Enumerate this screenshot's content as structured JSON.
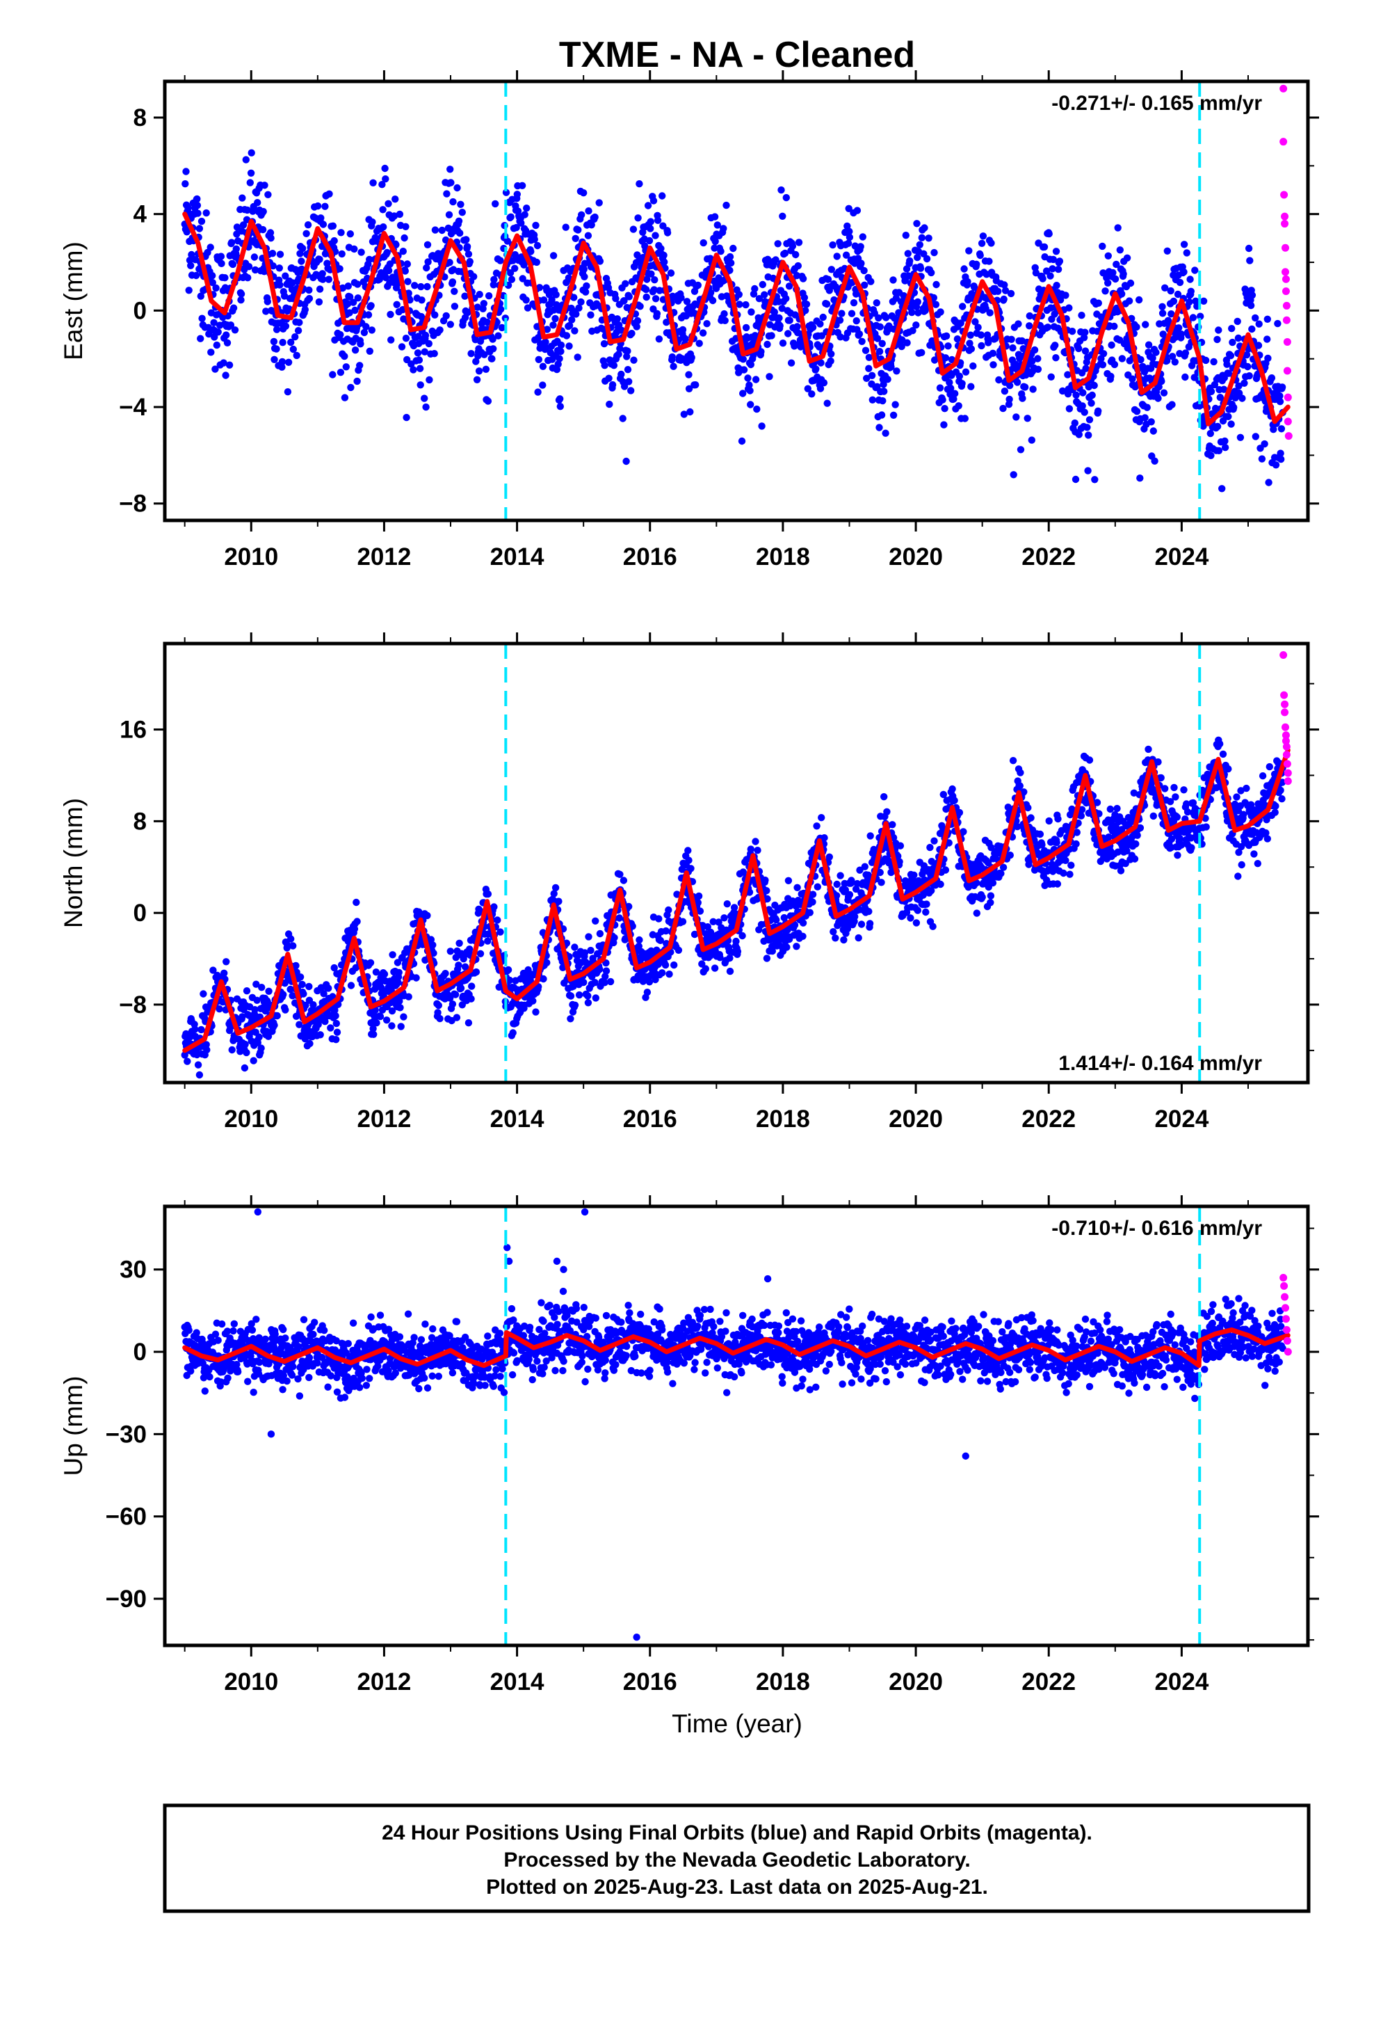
{
  "title": "TXME  - NA - Cleaned",
  "colors": {
    "final_orbits": "#0000ff",
    "rapid_orbits": "#ff00ff",
    "model": "#ff0000",
    "steps": "#00e5ff",
    "frame": "#000000"
  },
  "chart_data": [
    {
      "type": "scatter",
      "name": "east",
      "ylabel": "East (mm)",
      "xlim": [
        2008.7,
        2025.9
      ],
      "ylim": [
        -8.7,
        9.5
      ],
      "yticks": [
        -8,
        -4,
        0,
        4,
        8
      ],
      "xticks": [
        2010,
        2012,
        2014,
        2016,
        2018,
        2020,
        2022,
        2024
      ],
      "rate_text": "-0.271+/- 0.165 mm/yr",
      "rate_position": "top-right",
      "step_epochs": [
        2013.83,
        2024.27
      ],
      "model": {
        "x": [
          2009.0,
          2009.2,
          2009.4,
          2009.6,
          2009.8,
          2010.0,
          2010.2,
          2010.4,
          2010.6,
          2010.8,
          2011.0,
          2011.2,
          2011.4,
          2011.6,
          2011.8,
          2012.0,
          2012.2,
          2012.4,
          2012.6,
          2012.8,
          2013.0,
          2013.2,
          2013.4,
          2013.6,
          2013.83,
          2014.0,
          2014.2,
          2014.4,
          2014.6,
          2014.8,
          2015.0,
          2015.2,
          2015.4,
          2015.6,
          2015.8,
          2016.0,
          2016.2,
          2016.4,
          2016.6,
          2016.8,
          2017.0,
          2017.2,
          2017.4,
          2017.6,
          2017.8,
          2018.0,
          2018.2,
          2018.4,
          2018.6,
          2018.8,
          2019.0,
          2019.2,
          2019.4,
          2019.6,
          2019.8,
          2020.0,
          2020.2,
          2020.4,
          2020.6,
          2020.8,
          2021.0,
          2021.2,
          2021.4,
          2021.6,
          2021.8,
          2022.0,
          2022.2,
          2022.4,
          2022.6,
          2022.8,
          2023.0,
          2023.2,
          2023.4,
          2023.6,
          2023.8,
          2024.0,
          2024.27,
          2024.4,
          2024.6,
          2024.8,
          2025.0,
          2025.2,
          2025.4,
          2025.6
        ],
        "y": [
          4.0,
          2.8,
          0.4,
          -0.1,
          1.6,
          3.7,
          2.6,
          -0.2,
          -0.3,
          1.4,
          3.4,
          2.4,
          -0.5,
          -0.5,
          1.2,
          3.2,
          2.2,
          -0.8,
          -0.7,
          1.0,
          2.9,
          2.0,
          -1.0,
          -0.9,
          2.0,
          3.1,
          1.9,
          -1.1,
          -1.0,
          0.8,
          2.8,
          1.8,
          -1.3,
          -1.2,
          0.6,
          2.6,
          1.5,
          -1.6,
          -1.4,
          0.4,
          2.3,
          1.2,
          -1.8,
          -1.6,
          0.2,
          2.0,
          1.0,
          -2.1,
          -1.9,
          0.0,
          1.8,
          0.7,
          -2.3,
          -2.0,
          -0.2,
          1.5,
          0.5,
          -2.6,
          -2.2,
          -0.4,
          1.2,
          0.2,
          -2.9,
          -2.5,
          -0.6,
          1.0,
          -0.2,
          -3.2,
          -2.8,
          -0.9,
          0.7,
          -0.5,
          -3.4,
          -3.0,
          -1.1,
          0.4,
          -2.0,
          -4.7,
          -4.2,
          -2.6,
          -1.0,
          -2.5,
          -4.6,
          -4.0
        ]
      },
      "rapid_points": {
        "x": [
          2025.53,
          2025.53,
          2025.54,
          2025.55,
          2025.55,
          2025.56,
          2025.56,
          2025.57,
          2025.57,
          2025.58,
          2025.58,
          2025.59,
          2025.59,
          2025.6,
          2025.6,
          2025.61
        ],
        "y": [
          9.2,
          7.0,
          4.8,
          3.9,
          3.6,
          2.6,
          1.6,
          1.3,
          0.8,
          0.2,
          -0.4,
          -1.3,
          -2.5,
          -3.6,
          -4.6,
          -5.2
        ]
      }
    },
    {
      "type": "scatter",
      "name": "north",
      "ylabel": "North (mm)",
      "xlim": [
        2008.7,
        2025.9
      ],
      "ylim": [
        -14.8,
        23.5
      ],
      "yticks": [
        -8,
        0,
        8,
        16
      ],
      "xticks": [
        2010,
        2012,
        2014,
        2016,
        2018,
        2020,
        2022,
        2024
      ],
      "rate_text": "1.414+/- 0.164 mm/yr",
      "rate_position": "bottom-right",
      "step_epochs": [
        2013.83,
        2024.27
      ],
      "model": {
        "x": [
          2009.0,
          2009.3,
          2009.55,
          2009.8,
          2010.0,
          2010.3,
          2010.55,
          2010.8,
          2011.0,
          2011.3,
          2011.55,
          2011.8,
          2012.0,
          2012.3,
          2012.55,
          2012.8,
          2013.0,
          2013.3,
          2013.55,
          2013.83,
          2014.0,
          2014.3,
          2014.55,
          2014.8,
          2015.0,
          2015.3,
          2015.55,
          2015.8,
          2016.0,
          2016.3,
          2016.55,
          2016.8,
          2017.0,
          2017.3,
          2017.55,
          2017.8,
          2018.0,
          2018.3,
          2018.55,
          2018.8,
          2019.0,
          2019.3,
          2019.55,
          2019.8,
          2020.0,
          2020.3,
          2020.55,
          2020.8,
          2021.0,
          2021.3,
          2021.55,
          2021.8,
          2022.0,
          2022.3,
          2022.55,
          2022.8,
          2023.0,
          2023.3,
          2023.55,
          2023.8,
          2024.0,
          2024.27,
          2024.55,
          2024.8,
          2025.0,
          2025.3,
          2025.6
        ],
        "y": [
          -12.0,
          -11.0,
          -6.0,
          -10.5,
          -10.0,
          -9.0,
          -3.6,
          -9.5,
          -8.8,
          -7.5,
          -2.2,
          -8.2,
          -7.7,
          -6.5,
          -0.6,
          -6.8,
          -6.2,
          -5.0,
          1.0,
          -6.8,
          -7.5,
          -6.0,
          0.7,
          -5.8,
          -5.3,
          -4.0,
          2.0,
          -4.8,
          -4.3,
          -3.0,
          3.5,
          -3.2,
          -2.7,
          -1.5,
          5.0,
          -1.8,
          -1.2,
          0.0,
          6.3,
          -0.3,
          0.3,
          1.5,
          7.8,
          1.2,
          1.8,
          3.0,
          9.2,
          2.8,
          3.3,
          4.5,
          10.5,
          4.2,
          4.8,
          6.0,
          12.0,
          5.8,
          6.3,
          7.5,
          13.2,
          7.2,
          7.8,
          8.0,
          13.4,
          7.2,
          7.6,
          9.0,
          14.2
        ]
      },
      "rapid_points": {
        "x": [
          2025.53,
          2025.54,
          2025.55,
          2025.55,
          2025.56,
          2025.57,
          2025.57,
          2025.58,
          2025.58,
          2025.59,
          2025.6,
          2025.6
        ],
        "y": [
          22.5,
          19.0,
          18.2,
          17.5,
          16.2,
          15.5,
          15.0,
          14.5,
          13.8,
          13.0,
          12.2,
          11.5
        ]
      }
    },
    {
      "type": "scatter",
      "name": "up",
      "ylabel": "Up (mm)",
      "xlim": [
        2008.7,
        2025.9
      ],
      "ylim": [
        -107,
        53
      ],
      "yticks": [
        -90,
        -60,
        -30,
        0,
        30
      ],
      "xticks": [
        2010,
        2012,
        2014,
        2016,
        2018,
        2020,
        2022,
        2024
      ],
      "xlabel": "Time (year)",
      "rate_text": "-0.710+/- 0.616 mm/yr",
      "rate_position": "top-right",
      "step_epochs": [
        2013.83,
        2024.27
      ],
      "model": {
        "x": [
          2009.0,
          2009.25,
          2009.5,
          2009.75,
          2010.0,
          2010.25,
          2010.5,
          2010.75,
          2011.0,
          2011.25,
          2011.5,
          2011.75,
          2012.0,
          2012.25,
          2012.5,
          2012.75,
          2013.0,
          2013.25,
          2013.5,
          2013.83,
          2013.84,
          2014.0,
          2014.25,
          2014.5,
          2014.75,
          2015.0,
          2015.25,
          2015.5,
          2015.75,
          2016.0,
          2016.25,
          2016.5,
          2016.75,
          2017.0,
          2017.25,
          2017.5,
          2017.75,
          2018.0,
          2018.25,
          2018.5,
          2018.75,
          2019.0,
          2019.25,
          2019.5,
          2019.75,
          2020.0,
          2020.25,
          2020.5,
          2020.75,
          2021.0,
          2021.25,
          2021.5,
          2021.75,
          2022.0,
          2022.25,
          2022.5,
          2022.75,
          2023.0,
          2023.25,
          2023.5,
          2023.75,
          2024.0,
          2024.26,
          2024.27,
          2024.5,
          2024.75,
          2025.0,
          2025.25,
          2025.6
        ],
        "y": [
          1.5,
          -1.5,
          -3.0,
          -0.5,
          2.0,
          -1.5,
          -3.5,
          -1.0,
          1.5,
          -2.0,
          -4.0,
          -1.5,
          1.0,
          -2.5,
          -4.5,
          -2.0,
          0.5,
          -3.0,
          -5.0,
          -1.5,
          7.0,
          5.0,
          1.5,
          3.5,
          6.0,
          4.0,
          0.5,
          3.0,
          5.5,
          3.5,
          0.0,
          2.5,
          5.0,
          3.0,
          -0.5,
          2.0,
          4.5,
          2.5,
          -1.0,
          1.5,
          4.0,
          2.0,
          -1.5,
          1.0,
          3.5,
          1.5,
          -2.0,
          0.5,
          3.0,
          1.0,
          -2.5,
          0.0,
          2.5,
          0.5,
          -3.0,
          -0.5,
          2.0,
          0.0,
          -3.5,
          -1.0,
          1.5,
          -0.5,
          -5.0,
          4.0,
          6.5,
          8.0,
          6.0,
          3.0,
          6.0
        ]
      },
      "outliers": {
        "x": [
          2010.1,
          2010.3,
          2015.02,
          2015.8,
          2020.75,
          2013.85,
          2013.88,
          2014.6,
          2014.7
        ],
        "y": [
          51,
          -30,
          51,
          -104,
          -38,
          38,
          33,
          33,
          30
        ]
      },
      "rapid_points": {
        "x": [
          2025.53,
          2025.54,
          2025.55,
          2025.56,
          2025.57,
          2025.58,
          2025.59,
          2025.6
        ],
        "y": [
          27,
          24,
          20,
          16,
          12,
          8,
          4,
          0
        ]
      }
    }
  ],
  "footer": {
    "line1": "24 Hour Positions Using Final Orbits (blue) and Rapid Orbits (magenta).",
    "line2": "Processed by the Nevada Geodetic Laboratory.",
    "line3": "Plotted on 2025-Aug-23. Last data on 2025-Aug-21."
  }
}
